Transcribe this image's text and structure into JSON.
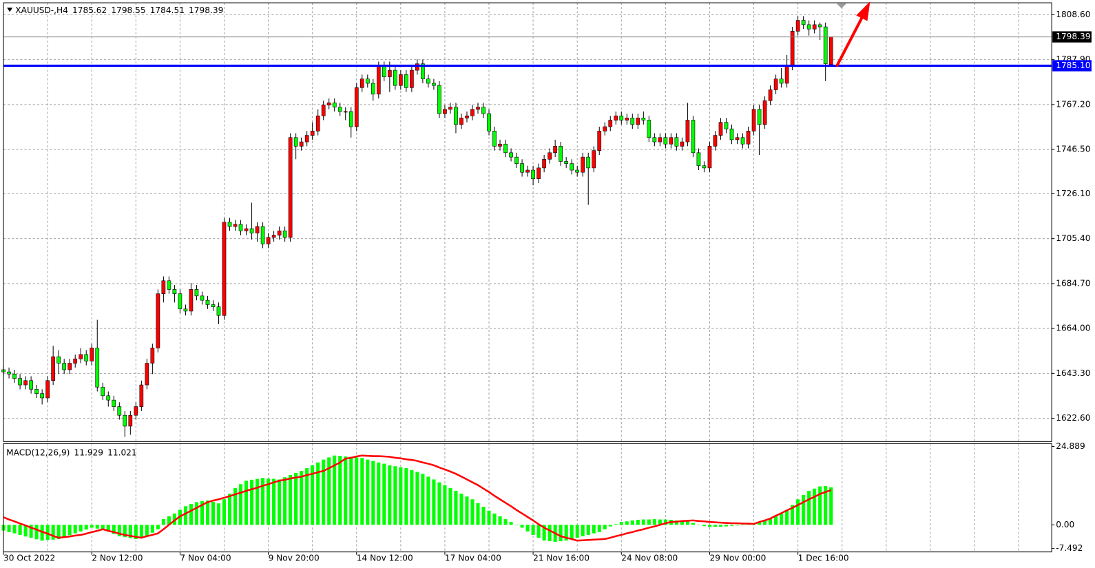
{
  "chart_data": [
    {
      "type": "candlestick",
      "symbol": "XAUUSD-,H4",
      "categories": [
        "30 Oct 2022",
        null,
        null,
        null,
        null,
        null,
        null,
        null,
        null,
        null,
        null,
        null,
        null,
        null,
        null,
        null,
        "2 Nov 12:00",
        null,
        null,
        null,
        null,
        null,
        null,
        null,
        null,
        null,
        null,
        null,
        null,
        null,
        null,
        null,
        "7 Nov 04:00",
        null,
        null,
        null,
        null,
        null,
        null,
        null,
        null,
        null,
        null,
        null,
        null,
        null,
        null,
        null,
        "9 Nov 20:00",
        null,
        null,
        null,
        null,
        null,
        null,
        null,
        null,
        null,
        null,
        null,
        null,
        null,
        null,
        null,
        "14 Nov 12:00",
        null,
        null,
        null,
        null,
        null,
        null,
        null,
        null,
        null,
        null,
        null,
        null,
        null,
        null,
        null,
        "17 Nov 04:00",
        null,
        null,
        null,
        null,
        null,
        null,
        null,
        null,
        null,
        null,
        null,
        null,
        null,
        null,
        null,
        "21 Nov 16:00",
        null,
        null,
        null,
        null,
        null,
        null,
        null,
        null,
        null,
        null,
        null,
        null,
        null,
        null,
        null,
        "24 Nov 08:00",
        null,
        null,
        null,
        null,
        null,
        null,
        null,
        null,
        null,
        null,
        null,
        null,
        null,
        null,
        null,
        "29 Nov 00:00",
        null,
        null,
        null,
        null,
        null,
        null,
        null,
        null,
        null,
        null,
        null,
        null,
        null,
        null,
        null,
        "1 Dec 16:00",
        null,
        null,
        null,
        null,
        null,
        null
      ],
      "open": [
        1645,
        1644,
        1643,
        1641,
        1638,
        1640,
        1636,
        1634,
        1632,
        1640,
        1651,
        1648,
        1645,
        1648,
        1650,
        1652,
        1649,
        1655,
        1637,
        1633,
        1631,
        1628,
        1624,
        1619,
        1624,
        1628,
        1638,
        1648,
        1655,
        1680,
        1686,
        1682,
        1680,
        1673,
        1672,
        1682,
        1679,
        1677,
        1675,
        1674,
        1670,
        1713,
        1711,
        1712,
        1709,
        1710,
        1708,
        1711,
        1703,
        1706,
        1707,
        1709,
        1706,
        1752,
        1748,
        1750,
        1753,
        1755,
        1762,
        1767,
        1768,
        1766,
        1764,
        1764,
        1757,
        1775,
        1779,
        1777,
        1772,
        1785,
        1780,
        1783,
        1776,
        1781,
        1775,
        1783,
        1786,
        1779,
        1777,
        1776,
        1763,
        1765,
        1766,
        1758,
        1761,
        1762,
        1765,
        1766,
        1763,
        1755,
        1748,
        1749,
        1745,
        1743,
        1740,
        1736,
        1737,
        1733,
        1738,
        1742,
        1745,
        1748,
        1741,
        1740,
        1737,
        1736,
        1743,
        1738,
        1746,
        1755,
        1757,
        1760,
        1762,
        1760,
        1761,
        1758,
        1761,
        1760,
        1752,
        1750,
        1752,
        1749,
        1752,
        1748,
        1750,
        1760,
        1745,
        1739,
        1738,
        1748,
        1753,
        1759,
        1756,
        1751,
        1752,
        1749,
        1755,
        1765,
        1758,
        1769,
        1774,
        1779,
        1777,
        1785,
        1801,
        1806,
        1804,
        1802,
        1804,
        1803,
        1785.62
      ],
      "high": [
        1647,
        1646,
        1645,
        1643,
        1642,
        1642,
        1638,
        1636,
        1642,
        1656,
        1654,
        1650,
        1650,
        1652,
        1655,
        1654,
        1657,
        1668,
        1639,
        1635,
        1633,
        1630,
        1626,
        1626,
        1630,
        1640,
        1650,
        1657,
        1682,
        1688,
        1688,
        1684,
        1682,
        1675,
        1685,
        1684,
        1681,
        1679,
        1677,
        1676,
        1715,
        1715,
        1714,
        1714,
        1712,
        1722,
        1713,
        1713,
        1708,
        1709,
        1711,
        1711,
        1754,
        1754,
        1752,
        1755,
        1759,
        1765,
        1769,
        1770,
        1770,
        1768,
        1766,
        1766,
        1777,
        1781,
        1781,
        1779,
        1787,
        1787,
        1787,
        1785,
        1783,
        1783,
        1785,
        1788,
        1788,
        1781,
        1779,
        1778,
        1767,
        1768,
        1768,
        1763,
        1764,
        1767,
        1768,
        1768,
        1765,
        1757,
        1751,
        1751,
        1747,
        1745,
        1742,
        1739,
        1739,
        1740,
        1744,
        1747,
        1751,
        1750,
        1743,
        1742,
        1739,
        1745,
        1745,
        1748,
        1757,
        1759,
        1762,
        1764,
        1764,
        1763,
        1763,
        1763,
        1764,
        1762,
        1754,
        1754,
        1754,
        1754,
        1754,
        1752,
        1768,
        1762,
        1747,
        1741,
        1750,
        1755,
        1761,
        1761,
        1758,
        1754,
        1754,
        1757,
        1767,
        1767,
        1771,
        1776,
        1781,
        1784,
        1790,
        1803,
        1808,
        1808,
        1806,
        1806,
        1805,
        1805,
        1798.55
      ],
      "low": [
        1642,
        1641,
        1639,
        1636,
        1636,
        1634,
        1632,
        1629,
        1630,
        1638,
        1643,
        1643,
        1643,
        1646,
        1648,
        1647,
        1647,
        1635,
        1631,
        1628,
        1626,
        1622,
        1614,
        1615,
        1622,
        1626,
        1636,
        1643,
        1653,
        1676,
        1680,
        1676,
        1671,
        1670,
        1670,
        1677,
        1675,
        1673,
        1672,
        1666,
        1668,
        1709,
        1709,
        1707,
        1707,
        1705,
        1704,
        1701,
        1701,
        1704,
        1705,
        1704,
        1704,
        1742,
        1746,
        1748,
        1751,
        1753,
        1760,
        1765,
        1764,
        1762,
        1760,
        1752,
        1755,
        1773,
        1775,
        1769,
        1770,
        1778,
        1773,
        1774,
        1774,
        1773,
        1773,
        1781,
        1777,
        1775,
        1774,
        1761,
        1761,
        1763,
        1754,
        1756,
        1759,
        1760,
        1763,
        1761,
        1753,
        1746,
        1746,
        1743,
        1741,
        1738,
        1734,
        1734,
        1730,
        1731,
        1736,
        1740,
        1743,
        1739,
        1738,
        1735,
        1734,
        1734,
        1721,
        1736,
        1744,
        1753,
        1755,
        1758,
        1758,
        1758,
        1756,
        1756,
        1758,
        1750,
        1748,
        1748,
        1747,
        1747,
        1746,
        1746,
        1748,
        1743,
        1737,
        1736,
        1736,
        1746,
        1751,
        1754,
        1749,
        1749,
        1747,
        1747,
        1753,
        1744,
        1756,
        1767,
        1772,
        1775,
        1775,
        1783,
        1799,
        1802,
        1799,
        1800,
        1797,
        1778,
        1784.51
      ],
      "close": [
        1644,
        1643,
        1641,
        1638,
        1640,
        1636,
        1634,
        1632,
        1640,
        1651,
        1648,
        1645,
        1648,
        1650,
        1652,
        1649,
        1655,
        1637,
        1633,
        1631,
        1628,
        1624,
        1619,
        1624,
        1628,
        1638,
        1648,
        1655,
        1680,
        1686,
        1682,
        1680,
        1673,
        1672,
        1682,
        1679,
        1677,
        1675,
        1674,
        1670,
        1713,
        1711,
        1712,
        1709,
        1710,
        1708,
        1711,
        1703,
        1706,
        1707,
        1709,
        1706,
        1752,
        1748,
        1750,
        1753,
        1755,
        1762,
        1767,
        1768,
        1766,
        1764,
        1764,
        1757,
        1775,
        1779,
        1777,
        1772,
        1785,
        1780,
        1783,
        1776,
        1781,
        1775,
        1783,
        1786,
        1779,
        1777,
        1776,
        1763,
        1765,
        1766,
        1758,
        1761,
        1762,
        1765,
        1766,
        1763,
        1755,
        1748,
        1749,
        1745,
        1743,
        1740,
        1736,
        1737,
        1733,
        1738,
        1742,
        1745,
        1748,
        1741,
        1740,
        1737,
        1736,
        1743,
        1738,
        1746,
        1755,
        1757,
        1760,
        1762,
        1760,
        1761,
        1758,
        1761,
        1760,
        1752,
        1750,
        1752,
        1749,
        1752,
        1748,
        1750,
        1760,
        1745,
        1739,
        1738,
        1748,
        1753,
        1759,
        1756,
        1751,
        1752,
        1749,
        1755,
        1765,
        1758,
        1769,
        1774,
        1779,
        1777,
        1785,
        1801,
        1806,
        1804,
        1802,
        1804,
        1803,
        1786,
        1798.39
      ],
      "up_color": "#ff0000",
      "down_color": "#00ff00",
      "wick_color": "#000000",
      "ylim": [
        1611.9,
        1814.1
      ],
      "yticks": [
        {
          "value": 1808.6,
          "label": "1808.60"
        },
        {
          "value": 1787.9,
          "label": "1787.90"
        },
        {
          "value": 1767.2,
          "label": "1767.20"
        },
        {
          "value": 1746.5,
          "label": "1746.50"
        },
        {
          "value": 1726.1,
          "label": "1726.10"
        },
        {
          "value": 1705.4,
          "label": "1705.40"
        },
        {
          "value": 1684.7,
          "label": "1684.70"
        },
        {
          "value": 1664,
          "label": "1664.00"
        },
        {
          "value": 1643.3,
          "label": "1643.30"
        },
        {
          "value": 1622.6,
          "label": "1622.60"
        }
      ],
      "grid": true,
      "current_price_color": "#808080",
      "hline": {
        "value": 1785.1,
        "label": "1785.10",
        "color": "#0000ff"
      }
    },
    {
      "type": "macd",
      "title": "MACD(12,26,9)",
      "macd": [
        -1.8,
        -2.3,
        -2.7,
        -3.2,
        -3.7,
        -4.1,
        -4.6,
        -5.0,
        -4.8,
        -4.7,
        -4.5,
        -3.9,
        -3.3,
        -2.7,
        -2.1,
        -1.5,
        -0.9,
        -1.2,
        -1.4,
        -2.1,
        -2.9,
        -3.6,
        -3.9,
        -4.2,
        -4.5,
        -4.1,
        -3.6,
        -2.5,
        -1.4,
        1.8,
        2.7,
        3.6,
        4.8,
        5.9,
        6.6,
        7.2,
        7.5,
        7.7,
        7.3,
        6.8,
        8.1,
        9.9,
        11.7,
        12.9,
        14.0,
        14.3,
        14.6,
        14.9,
        14.7,
        14.6,
        14.4,
        15.1,
        15.8,
        16.5,
        17.1,
        18.0,
        18.9,
        19.8,
        20.7,
        21.4,
        22.0,
        21.9,
        21.7,
        21.6,
        21.4,
        21.2,
        20.7,
        20.3,
        19.8,
        19.4,
        18.9,
        18.6,
        18.3,
        18.0,
        17.4,
        16.8,
        16.2,
        15.3,
        14.4,
        13.5,
        12.6,
        11.7,
        10.8,
        9.9,
        9.0,
        8.1,
        6.9,
        5.7,
        4.5,
        3.6,
        2.7,
        1.8,
        0.9,
        0.0,
        -0.9,
        -2.1,
        -3.2,
        -4.1,
        -5.0,
        -5.2,
        -5.4,
        -5.2,
        -5.0,
        -4.5,
        -4.1,
        -3.6,
        -3.2,
        -2.7,
        -2.3,
        -1.4,
        -0.5,
        0.2,
        0.9,
        1.1,
        1.4,
        1.6,
        1.7,
        1.7,
        1.8,
        1.7,
        1.7,
        1.6,
        1.4,
        1.3,
        1.1,
        0.6,
        0.0,
        -0.4,
        -0.7,
        -0.6,
        -0.6,
        -0.5,
        -0.3,
        -0.2,
        0.0,
        0.3,
        0.5,
        1.0,
        1.4,
        2.1,
        2.7,
        3.6,
        4.5,
        6.3,
        8.1,
        9.5,
        10.8,
        11.5,
        12.2,
        12.3,
        11.929
      ],
      "signal": [
        2.4,
        1.7,
        1.1,
        0.4,
        -0.2,
        -0.9,
        -1.5,
        -2.2,
        -2.8,
        -3.5,
        -4.1,
        -3.9,
        -3.7,
        -3.4,
        -3.2,
        -2.8,
        -2.3,
        -1.9,
        -1.4,
        -1.9,
        -2.3,
        -2.8,
        -3.2,
        -3.5,
        -3.8,
        -4.1,
        -3.6,
        -3.2,
        -2.7,
        -1.4,
        0.0,
        1.4,
        2.7,
        3.6,
        4.5,
        5.4,
        6.3,
        7.2,
        7.7,
        8.1,
        8.6,
        9.1,
        9.7,
        10.2,
        10.8,
        11.3,
        11.8,
        12.4,
        12.9,
        13.5,
        14.0,
        14.3,
        14.7,
        15.0,
        15.3,
        15.8,
        16.2,
        16.7,
        17.1,
        18.0,
        18.9,
        19.8,
        21.0,
        21.3,
        21.7,
        22.0,
        21.9,
        21.8,
        21.8,
        21.7,
        21.6,
        21.3,
        21.1,
        20.8,
        20.6,
        20.3,
        19.8,
        19.4,
        18.9,
        18.2,
        17.6,
        16.9,
        16.2,
        15.3,
        14.4,
        13.5,
        12.6,
        11.5,
        10.4,
        9.2,
        8.1,
        7.0,
        5.9,
        4.7,
        3.6,
        2.5,
        1.4,
        0.2,
        -0.9,
        -1.8,
        -2.7,
        -3.6,
        -4.1,
        -4.5,
        -5.0,
        -4.9,
        -4.8,
        -4.7,
        -4.6,
        -4.5,
        -4.1,
        -3.6,
        -3.2,
        -2.7,
        -2.3,
        -1.8,
        -1.4,
        -0.9,
        -0.5,
        0.0,
        0.5,
        0.9,
        1.0,
        1.2,
        1.3,
        1.4,
        1.2,
        1.1,
        0.9,
        0.8,
        0.7,
        0.6,
        0.5,
        0.5,
        0.4,
        0.4,
        0.3,
        0.9,
        1.4,
        2.0,
        2.9,
        3.7,
        4.6,
        5.4,
        6.3,
        7.2,
        8.1,
        8.9,
        9.8,
        10.4,
        11.021
      ],
      "macd_color": "#00ff00",
      "signal_color": "#ff0000",
      "ylim": [
        -7.492,
        24.889
      ],
      "yticks": [
        24.889,
        {
          "value": 0,
          "label": "0.00"
        },
        -7.492
      ]
    }
  ]
}
